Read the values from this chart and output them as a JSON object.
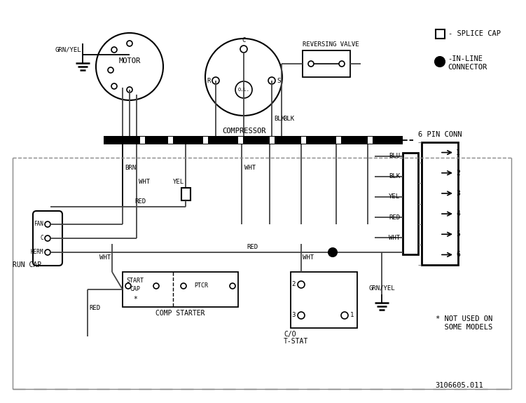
{
  "bg_color": "#ffffff",
  "line_color": "#000000",
  "wire_color": "#444444",
  "fig_number": "3106605.011",
  "pin_labels": [
    "BLU",
    "BLK",
    "YEL",
    "RED",
    "WHT",
    ""
  ],
  "pin_numbers": [
    "1",
    "2",
    "3",
    "4",
    "5",
    "6"
  ],
  "pin_conn_label": "6 PIN CONN",
  "motor_label": "MOTOR",
  "comp_label": "COMPRESSOR",
  "rv_label": "REVERSING VALVE",
  "run_cap_label": "RUN CAP",
  "comp_starter_label": "COMP STARTER",
  "tstat_label1": "C/O",
  "tstat_label2": "T-STAT",
  "not_used_label": "* NOT USED ON\n  SOME MODELS",
  "splice_cap_label": "- SPLICE CAP",
  "inline_label1": "-IN-LINE",
  "inline_label2": "CONNECTOR"
}
